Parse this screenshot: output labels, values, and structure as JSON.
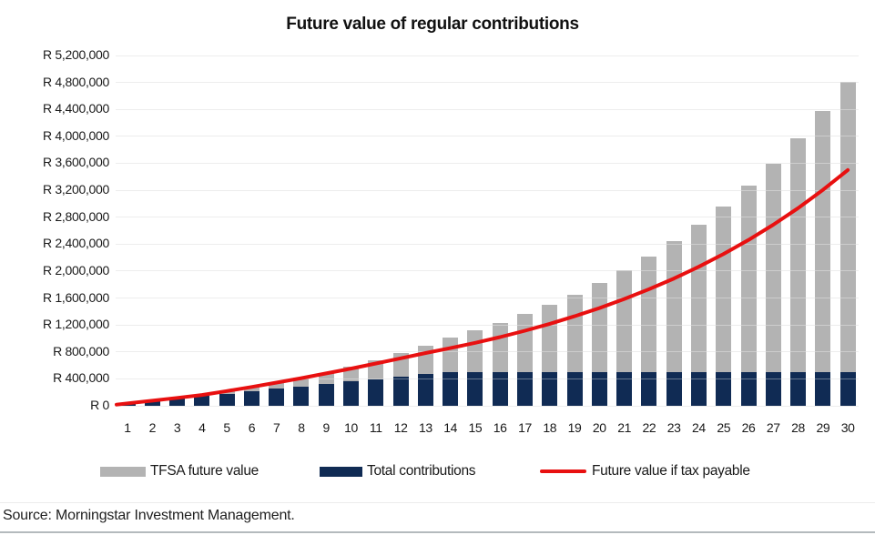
{
  "title": "Future value of regular contributions",
  "source": "Source: Morningstar Investment Management.",
  "colors": {
    "tfsa_bar": "#b3b3b3",
    "contributions_bar": "#102b54",
    "tax_line": "#e81010",
    "gridline": "#e4e4e4",
    "text": "#1a1a1a"
  },
  "legend": {
    "position": "bottom"
  },
  "chart_data": {
    "type": "bar",
    "title": "Future value of regular contributions",
    "categories": [
      "1",
      "2",
      "3",
      "4",
      "5",
      "6",
      "7",
      "8",
      "9",
      "10",
      "11",
      "12",
      "13",
      "14",
      "15",
      "16",
      "17",
      "18",
      "19",
      "20",
      "21",
      "22",
      "23",
      "24",
      "25",
      "26",
      "27",
      "28",
      "29",
      "30"
    ],
    "xlabel": "",
    "ylabel": "",
    "currency_prefix": "R",
    "y_axis": {
      "min": 0,
      "max": 5200000,
      "step": 400000
    },
    "grid": true,
    "legend_position": "bottom",
    "series": [
      {
        "name": "TFSA future value",
        "kind": "bar",
        "color": "#b3b3b3",
        "values": [
          36000,
          76000,
          119000,
          168000,
          221000,
          279000,
          344000,
          415000,
          493000,
          579000,
          674000,
          779000,
          895000,
          1018000,
          1122000,
          1236000,
          1362000,
          1501000,
          1654000,
          1823000,
          2009000,
          2214000,
          2440000,
          2689000,
          2963000,
          3265000,
          3598000,
          3965000,
          4370000,
          4815000
        ]
      },
      {
        "name": "Total contributions",
        "kind": "bar",
        "color": "#102b54",
        "values": [
          36000,
          72000,
          108000,
          144000,
          180000,
          216000,
          252000,
          288000,
          324000,
          360000,
          396000,
          432000,
          468000,
          500000,
          500000,
          500000,
          500000,
          500000,
          500000,
          500000,
          500000,
          500000,
          500000,
          500000,
          500000,
          500000,
          500000,
          500000,
          500000,
          500000
        ]
      },
      {
        "name": "Future value if tax payable",
        "kind": "line",
        "color": "#e81010",
        "values": [
          37000,
          76000,
          117000,
          161000,
          219000,
          280000,
          344000,
          411000,
          481000,
          553000,
          628000,
          705000,
          784000,
          856000,
          934000,
          1020000,
          1114000,
          1217000,
          1329000,
          1451000,
          1585000,
          1731000,
          1890000,
          2064000,
          2254000,
          2461000,
          2688000,
          2935000,
          3205000,
          3500000
        ]
      }
    ]
  }
}
